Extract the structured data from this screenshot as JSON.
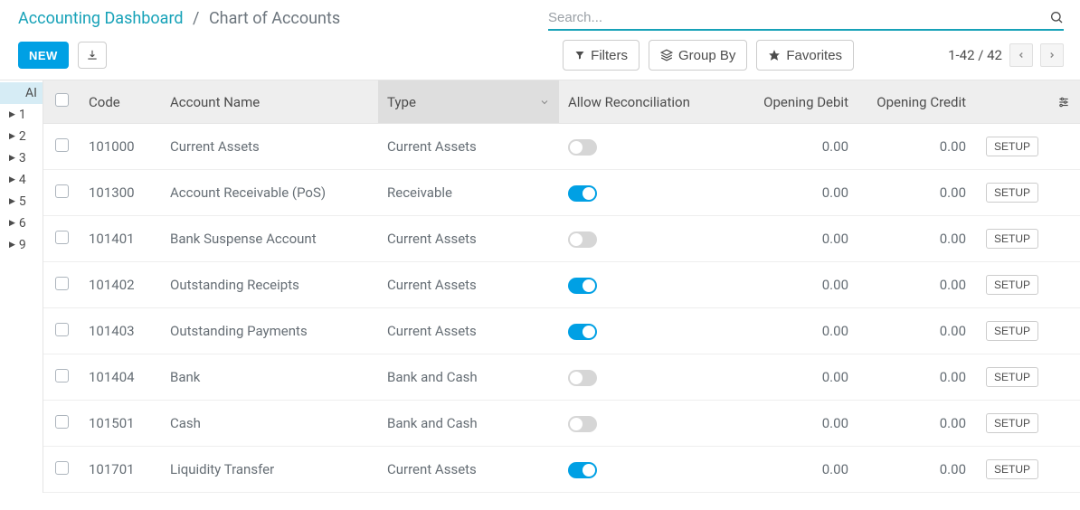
{
  "breadcrumb": {
    "link": "Accounting Dashboard",
    "sep": "/",
    "current": "Chart of Accounts"
  },
  "search": {
    "placeholder": "Search..."
  },
  "actions": {
    "new_label": "NEW"
  },
  "controls": {
    "filters_label": "Filters",
    "group_by_label": "Group By",
    "favorites_label": "Favorites"
  },
  "pager": {
    "range": "1-42 / 42"
  },
  "sidebar": {
    "top": "AI",
    "items": [
      "1",
      "2",
      "3",
      "4",
      "5",
      "6",
      "9"
    ]
  },
  "columns": {
    "code": "Code",
    "name": "Account Name",
    "type": "Type",
    "recon": "Allow Reconciliation",
    "debit": "Opening Debit",
    "credit": "Opening Credit"
  },
  "setup_label": "SETUP",
  "rows": [
    {
      "code": "101000",
      "name": "Current Assets",
      "type": "Current Assets",
      "recon": false,
      "debit": "0.00",
      "credit": "0.00"
    },
    {
      "code": "101300",
      "name": "Account Receivable (PoS)",
      "type": "Receivable",
      "recon": true,
      "debit": "0.00",
      "credit": "0.00"
    },
    {
      "code": "101401",
      "name": "Bank Suspense Account",
      "type": "Current Assets",
      "recon": false,
      "debit": "0.00",
      "credit": "0.00"
    },
    {
      "code": "101402",
      "name": "Outstanding Receipts",
      "type": "Current Assets",
      "recon": true,
      "debit": "0.00",
      "credit": "0.00"
    },
    {
      "code": "101403",
      "name": "Outstanding Payments",
      "type": "Current Assets",
      "recon": true,
      "debit": "0.00",
      "credit": "0.00"
    },
    {
      "code": "101404",
      "name": "Bank",
      "type": "Bank and Cash",
      "recon": false,
      "debit": "0.00",
      "credit": "0.00"
    },
    {
      "code": "101501",
      "name": "Cash",
      "type": "Bank and Cash",
      "recon": false,
      "debit": "0.00",
      "credit": "0.00"
    },
    {
      "code": "101701",
      "name": "Liquidity Transfer",
      "type": "Current Assets",
      "recon": true,
      "debit": "0.00",
      "credit": "0.00"
    }
  ],
  "colors": {
    "primary": "#00a0e4",
    "link": "#17a2b8",
    "header_bg": "#eeeeee",
    "sorted_bg": "#dedede",
    "sidebar_top_bg": "#d6ecf5",
    "border": "#e5e5e5",
    "text": "#4c4c4c",
    "text_muted": "#666e75"
  }
}
